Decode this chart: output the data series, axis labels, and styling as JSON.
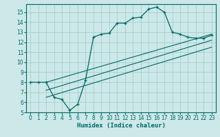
{
  "xlabel": "Humidex (Indice chaleur)",
  "ylabel": "",
  "bg_color": "#cce8e8",
  "line_color": "#006666",
  "grid_color": "#aacccc",
  "xlim": [
    -0.5,
    23.5
  ],
  "ylim": [
    5,
    15.8
  ],
  "xticks": [
    0,
    1,
    2,
    3,
    4,
    5,
    6,
    7,
    8,
    9,
    10,
    11,
    12,
    13,
    14,
    15,
    16,
    17,
    18,
    19,
    20,
    21,
    22,
    23
  ],
  "yticks": [
    5,
    6,
    7,
    8,
    9,
    10,
    11,
    12,
    13,
    14,
    15
  ],
  "curve1_x": [
    0,
    1,
    2,
    3,
    4,
    5,
    6,
    7,
    8,
    9,
    10,
    11,
    12,
    13,
    14,
    15,
    16,
    17,
    18,
    19,
    20,
    21,
    22,
    23
  ],
  "curve1_y": [
    8,
    8,
    8,
    6.5,
    6.3,
    5.2,
    5.8,
    8.2,
    12.5,
    12.8,
    12.9,
    13.9,
    13.9,
    14.4,
    14.5,
    15.3,
    15.5,
    15.0,
    13.0,
    12.8,
    12.5,
    12.4,
    12.4,
    12.7
  ],
  "curve2_x": [
    2,
    23
  ],
  "curve2_y": [
    8.0,
    12.8
  ],
  "curve3_x": [
    2,
    23
  ],
  "curve3_y": [
    7.2,
    12.2
  ],
  "curve4_x": [
    2,
    23
  ],
  "curve4_y": [
    6.5,
    11.5
  ]
}
